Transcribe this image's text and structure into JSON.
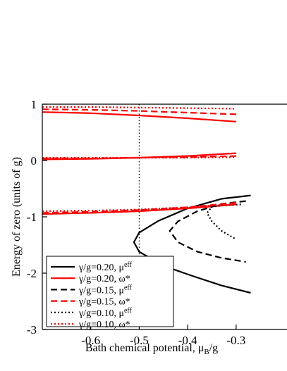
{
  "chart_data": {
    "type": "line",
    "xlabel": "Bath chemical potential, μ",
    "xlabel_sub": "B",
    "xlabel_tail": "/g",
    "ylabel": "Energy of zero (units of g)",
    "xlim": [
      -0.7,
      -0.195
    ],
    "ylim": [
      -3,
      1
    ],
    "x_ticks": [
      -0.6,
      -0.5,
      -0.4,
      -0.3
    ],
    "x_tick_labels": [
      "-0.6",
      "-0.5",
      "-0.4",
      "-0.3"
    ],
    "y_ticks": [
      1,
      0,
      -1,
      -2,
      -3
    ],
    "y_tick_labels": [
      "1",
      "0",
      "-1",
      "-2",
      "-3"
    ],
    "reference_line": {
      "x": -0.5,
      "style": "dotted"
    },
    "legend_position": "lower-left",
    "legend": [
      {
        "text": "γ/g=0.20, μ",
        "sup": "eff",
        "color": "#000000",
        "style": "solid"
      },
      {
        "text": "γ/g=0.20, ω*",
        "sup": "",
        "color": "#ff0000",
        "style": "solid"
      },
      {
        "text": "γ/g=0.15, μ",
        "sup": "eff",
        "color": "#000000",
        "style": "dashed"
      },
      {
        "text": "γ/g=0.15, ω*",
        "sup": "",
        "color": "#ff0000",
        "style": "dashed"
      },
      {
        "text": "γ/g=0.10, μ",
        "sup": "eff",
        "color": "#000000",
        "style": "dotted"
      },
      {
        "text": "γ/g=0.10, ω*",
        "sup": "",
        "color": "#ff0000",
        "style": "dotted"
      }
    ],
    "series": [
      {
        "color": "#000000",
        "style": "solid",
        "x": [
          -0.27,
          -0.33,
          -0.4,
          -0.46,
          -0.5,
          -0.511,
          -0.5,
          -0.45,
          -0.39,
          -0.33,
          -0.27
        ],
        "y": [
          -0.62,
          -0.68,
          -0.85,
          -1.07,
          -1.28,
          -1.45,
          -1.62,
          -1.87,
          -2.05,
          -2.22,
          -2.35
        ]
      },
      {
        "color": "#ff0000",
        "style": "solid",
        "x": [
          -0.7,
          -0.6,
          -0.5,
          -0.4,
          -0.3
        ],
        "y": [
          0.86,
          0.84,
          0.8,
          0.75,
          0.69
        ]
      },
      {
        "color": "#ff0000",
        "style": "solid",
        "x": [
          -0.7,
          -0.6,
          -0.5,
          -0.4,
          -0.3
        ],
        "y": [
          0.02,
          0.03,
          0.05,
          0.08,
          0.13
        ]
      },
      {
        "color": "#ff0000",
        "style": "solid",
        "x": [
          -0.7,
          -0.6,
          -0.5,
          -0.4,
          -0.3
        ],
        "y": [
          -0.95,
          -0.93,
          -0.9,
          -0.85,
          -0.78
        ]
      },
      {
        "color": "#000000",
        "style": "dashed",
        "x": [
          -0.28,
          -0.33,
          -0.38,
          -0.42,
          -0.437,
          -0.42,
          -0.38,
          -0.33,
          -0.28
        ],
        "y": [
          -0.72,
          -0.77,
          -0.9,
          -1.08,
          -1.25,
          -1.45,
          -1.62,
          -1.73,
          -1.8
        ]
      },
      {
        "color": "#ff0000",
        "style": "dashed",
        "x": [
          -0.7,
          -0.6,
          -0.5,
          -0.4,
          -0.3
        ],
        "y": [
          0.91,
          0.9,
          0.88,
          0.85,
          0.82
        ]
      },
      {
        "color": "#ff0000",
        "style": "dashed",
        "x": [
          -0.7,
          -0.6,
          -0.5,
          -0.4,
          -0.3
        ],
        "y": [
          0.04,
          0.04,
          0.05,
          0.06,
          0.08
        ]
      },
      {
        "color": "#ff0000",
        "style": "dashed",
        "x": [
          -0.7,
          -0.6,
          -0.5,
          -0.4,
          -0.3
        ],
        "y": [
          -0.93,
          -0.91,
          -0.88,
          -0.83,
          -0.75
        ]
      },
      {
        "color": "#000000",
        "style": "dotted",
        "x": [
          -0.29,
          -0.32,
          -0.35,
          -0.36,
          -0.35,
          -0.33,
          -0.3
        ],
        "y": [
          -0.78,
          -0.79,
          -0.82,
          -0.93,
          -1.08,
          -1.25,
          -1.4
        ]
      },
      {
        "color": "#ff0000",
        "style": "dotted",
        "x": [
          -0.7,
          -0.6,
          -0.5,
          -0.4,
          -0.3
        ],
        "y": [
          0.95,
          0.95,
          0.94,
          0.93,
          0.92
        ]
      },
      {
        "color": "#ff0000",
        "style": "dotted",
        "x": [
          -0.7,
          -0.6,
          -0.5,
          -0.4,
          -0.3
        ],
        "y": [
          0.05,
          0.05,
          0.05,
          0.05,
          0.06
        ]
      },
      {
        "color": "#ff0000",
        "style": "dotted",
        "x": [
          -0.7,
          -0.6,
          -0.5,
          -0.4,
          -0.3
        ],
        "y": [
          -0.9,
          -0.89,
          -0.87,
          -0.83,
          -0.77
        ]
      }
    ]
  }
}
